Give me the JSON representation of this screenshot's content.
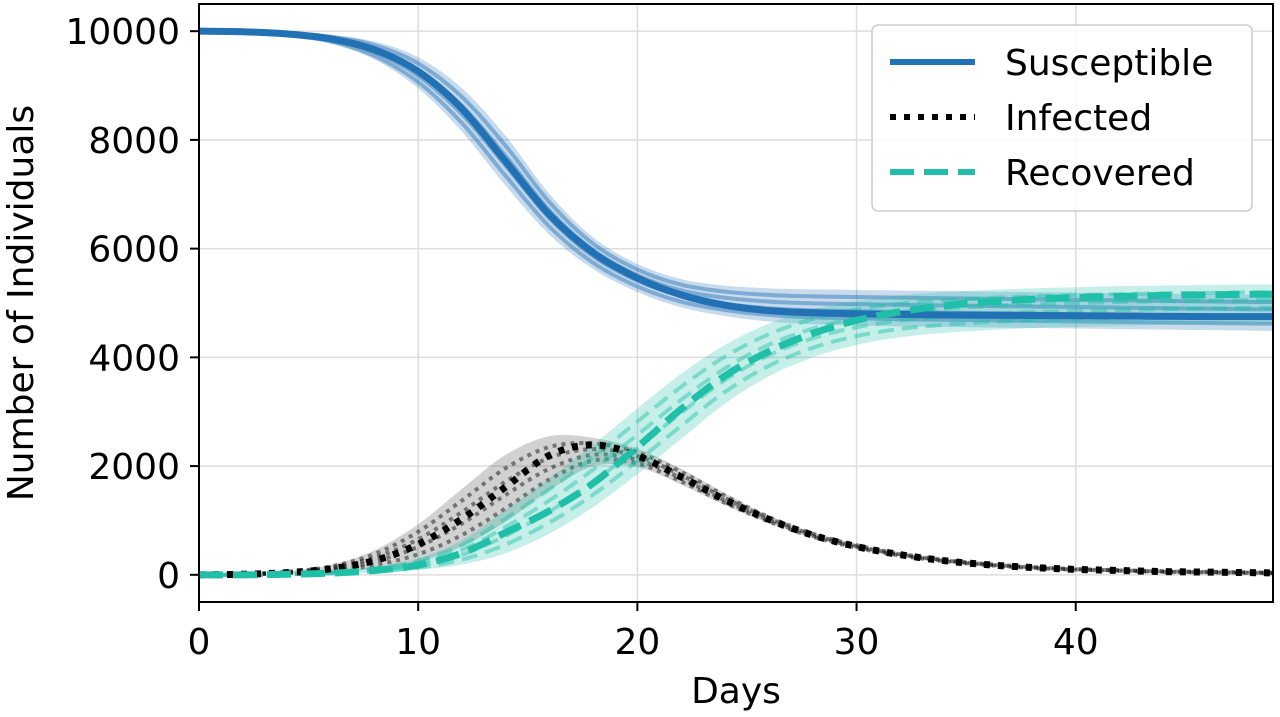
{
  "chart_data": {
    "type": "line",
    "title": "",
    "xlabel": "Days",
    "ylabel": "Number of Individuals",
    "xlim": [
      0,
      49
    ],
    "ylim": [
      -500,
      10500
    ],
    "xticks": [
      0,
      10,
      20,
      30,
      40
    ],
    "xtick_labels": [
      "0",
      "10",
      "20",
      "30",
      "40"
    ],
    "yticks": [
      0,
      2000,
      4000,
      6000,
      8000,
      10000
    ],
    "ytick_labels": [
      "0",
      "2000",
      "4000",
      "6000",
      "8000",
      "10000"
    ],
    "grid": true,
    "legend_position": "top-right",
    "x": [
      0,
      2,
      4,
      6,
      8,
      10,
      12,
      14,
      16,
      18,
      20,
      22,
      24,
      26,
      28,
      30,
      32,
      34,
      36,
      38,
      40,
      42,
      44,
      46,
      48,
      49
    ],
    "series": [
      {
        "name": "Susceptible",
        "style": "solid",
        "color": "#2271b5",
        "mean": [
          10000,
          9990,
          9950,
          9860,
          9660,
          9260,
          8570,
          7600,
          6620,
          5920,
          5460,
          5150,
          4960,
          4860,
          4820,
          4800,
          4790,
          4780,
          4775,
          4770,
          4765,
          4760,
          4755,
          4750,
          4750,
          4750
        ],
        "band_lower": [
          10000,
          9985,
          9920,
          9780,
          9480,
          8950,
          8150,
          7150,
          6250,
          5620,
          5200,
          4920,
          4760,
          4660,
          4610,
          4590,
          4570,
          4560,
          4550,
          4540,
          4530,
          4520,
          4510,
          4500,
          4490,
          4490
        ],
        "band_upper": [
          10000,
          9995,
          9975,
          9930,
          9810,
          9520,
          8950,
          8070,
          7000,
          6200,
          5720,
          5440,
          5320,
          5270,
          5250,
          5240,
          5230,
          5220,
          5210,
          5200,
          5190,
          5180,
          5170,
          5160,
          5150,
          5150
        ]
      },
      {
        "name": "Infected",
        "style": "dotted",
        "color": "#000000",
        "mean": [
          0,
          10,
          40,
          110,
          260,
          560,
          1030,
          1620,
          2200,
          2390,
          2190,
          1800,
          1380,
          1020,
          730,
          520,
          370,
          260,
          185,
          135,
          100,
          80,
          60,
          50,
          40,
          35
        ],
        "band_lower": [
          0,
          5,
          20,
          50,
          110,
          240,
          520,
          980,
          1560,
          2000,
          1980,
          1660,
          1280,
          950,
          680,
          480,
          340,
          240,
          170,
          120,
          90,
          70,
          50,
          40,
          30,
          25
        ],
        "band_upper": [
          0,
          15,
          65,
          180,
          450,
          930,
          1580,
          2210,
          2550,
          2520,
          2320,
          1950,
          1500,
          1090,
          780,
          560,
          400,
          285,
          205,
          150,
          110,
          90,
          70,
          60,
          50,
          45
        ]
      },
      {
        "name": "Recovered",
        "style": "dashed",
        "color": "#20c0a8",
        "mean": [
          0,
          0,
          10,
          30,
          80,
          180,
          400,
          780,
          1180,
          1690,
          2350,
          3050,
          3660,
          4110,
          4440,
          4680,
          4840,
          4950,
          5020,
          5070,
          5100,
          5120,
          5140,
          5150,
          5160,
          5160
        ],
        "band_lower": [
          0,
          0,
          5,
          15,
          40,
          90,
          190,
          400,
          760,
          1250,
          1850,
          2500,
          3150,
          3650,
          4000,
          4230,
          4370,
          4450,
          4500,
          4540,
          4560,
          4580,
          4600,
          4610,
          4620,
          4620
        ],
        "band_upper": [
          0,
          0,
          20,
          60,
          140,
          300,
          640,
          1200,
          1780,
          2400,
          3060,
          3700,
          4230,
          4620,
          4880,
          5040,
          5140,
          5200,
          5240,
          5270,
          5290,
          5310,
          5320,
          5330,
          5340,
          5340
        ]
      }
    ]
  }
}
